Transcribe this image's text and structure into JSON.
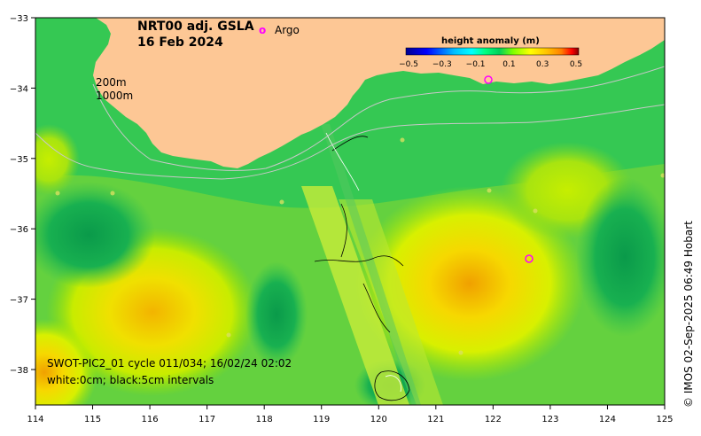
{
  "title": {
    "product": "NRT00 adj. GSLA",
    "date": "16 Feb 2024"
  },
  "legend": {
    "argo_symbol": "o",
    "argo_label": "Argo",
    "argo_color": "#ff00ff"
  },
  "isobaths": {
    "label_200": "200m",
    "label_1000": "1000m"
  },
  "colorbar": {
    "title": "height anomaly (m)",
    "ticks": [
      "−0.5",
      "−0.3",
      "−0.1",
      "0.1",
      "0.3",
      "0.5"
    ],
    "colors": [
      "#00008f",
      "#0000ff",
      "#00bfff",
      "#00ffff",
      "#00ff7f",
      "#00d05a",
      "#7fff00",
      "#ffff00",
      "#ffbf00",
      "#ff7f00",
      "#ff0000",
      "#7f0000"
    ]
  },
  "axes": {
    "x_ticks": [
      "114",
      "115",
      "116",
      "117",
      "118",
      "119",
      "120",
      "121",
      "122",
      "123",
      "124",
      "125"
    ],
    "y_ticks": [
      "−33",
      "−34",
      "−35",
      "−36",
      "−37",
      "−38"
    ]
  },
  "swot": {
    "line1": "SWOT-PIC2_01 cycle 011/034; 16/02/24 02:02",
    "line2": "white:0cm; black:5cm intervals"
  },
  "credit": "© IMOS 02-Sep-2025 06:49 Hobart",
  "colors": {
    "land": "#fdc795",
    "ocean_base": "#33c855",
    "high": "#f5b000",
    "low": "#14a050",
    "isobath": "#c8c8c8"
  }
}
